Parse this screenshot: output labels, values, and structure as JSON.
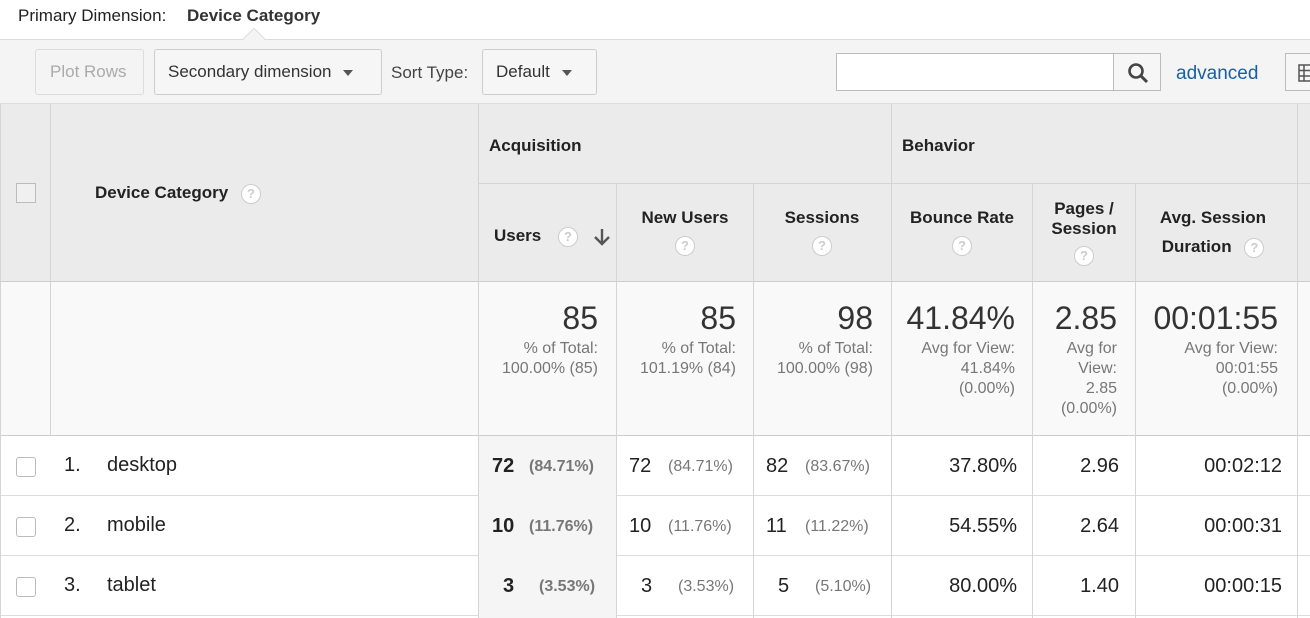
{
  "primary_dimension": {
    "label": "Primary Dimension:",
    "value": "Device Category"
  },
  "toolbar": {
    "plot_rows": "Plot Rows",
    "secondary_dimension": "Secondary dimension",
    "sort_type_label": "Sort Type:",
    "sort_type_value": "Default",
    "search_value": "",
    "advanced": "advanced"
  },
  "table": {
    "dimension_header": "Device Category",
    "groups": {
      "acquisition": "Acquisition",
      "behavior": "Behavior"
    },
    "columns": {
      "users": "Users",
      "new_users": "New Users",
      "sessions": "Sessions",
      "bounce_rate": "Bounce Rate",
      "pages_session_1": "Pages /",
      "pages_session_2": "Session",
      "avg_session_1": "Avg. Session",
      "avg_session_2": "Duration"
    },
    "totals": {
      "users": "85",
      "users_sub1": "% of Total:",
      "users_sub2": "100.00% (85)",
      "new_users": "85",
      "new_users_sub1": "% of Total:",
      "new_users_sub2": "101.19% (84)",
      "sessions": "98",
      "sessions_sub1": "% of Total:",
      "sessions_sub2": "100.00% (98)",
      "bounce_rate": "41.84%",
      "bounce_sub1": "Avg for View:",
      "bounce_sub2": "41.84%",
      "bounce_sub3": "(0.00%)",
      "pages": "2.85",
      "pages_sub1": "Avg for",
      "pages_sub2": "View:",
      "pages_sub3": "2.85",
      "pages_sub4": "(0.00%)",
      "duration": "00:01:55",
      "duration_sub1": "Avg for View:",
      "duration_sub2": "00:01:55",
      "duration_sub3": "(0.00%)"
    },
    "rows": [
      {
        "index": "1.",
        "device": "desktop",
        "users": "72",
        "users_pct": "(84.71%)",
        "new_users": "72",
        "new_users_pct": "(84.71%)",
        "sessions": "82",
        "sessions_pct": "(83.67%)",
        "bounce_rate": "37.80%",
        "pages": "2.96",
        "duration": "00:02:12"
      },
      {
        "index": "2.",
        "device": "mobile",
        "users": "10",
        "users_pct": "(11.76%)",
        "new_users": "10",
        "new_users_pct": "(11.76%)",
        "sessions": "11",
        "sessions_pct": "(11.22%)",
        "bounce_rate": "54.55%",
        "pages": "2.64",
        "duration": "00:00:31"
      },
      {
        "index": "3.",
        "device": "tablet",
        "users": "3",
        "users_pct": "(3.53%)",
        "new_users": "3",
        "new_users_pct": "(3.53%)",
        "sessions": "5",
        "sessions_pct": "(5.10%)",
        "bounce_rate": "80.00%",
        "pages": "1.40",
        "duration": "00:00:15"
      }
    ]
  },
  "icons": {
    "help": "?",
    "sort_arrow": "arrow-down-icon",
    "search": "search-icon",
    "grid": "grid-icon"
  }
}
